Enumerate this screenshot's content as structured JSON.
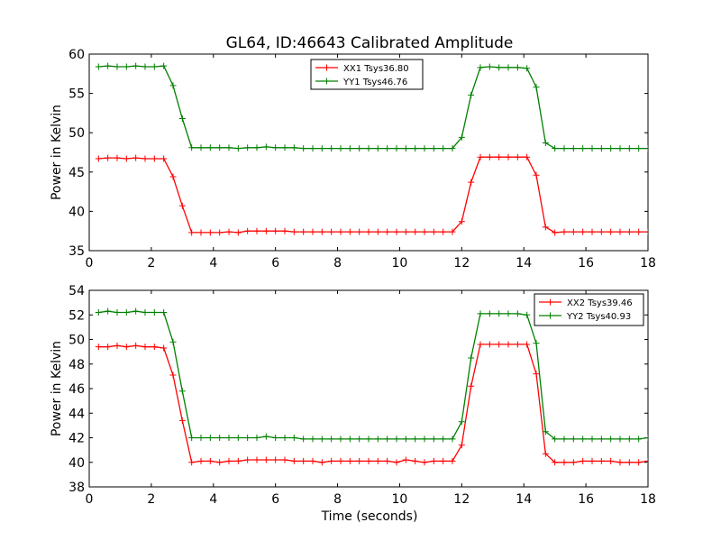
{
  "figure": {
    "title": "GL64, ID:46643 Calibrated Amplitude",
    "xlabel": "Time (seconds)"
  },
  "chart_data": [
    {
      "type": "line",
      "title": "GL64, ID:46643 Calibrated Amplitude",
      "xlabel": "",
      "ylabel": "Power in Kelvin",
      "xlim": [
        0,
        18
      ],
      "ylim": [
        35,
        60
      ],
      "xticks": [
        "0",
        "2",
        "4",
        "6",
        "8",
        "10",
        "12",
        "14",
        "16",
        "18"
      ],
      "yticks": [
        "35",
        "40",
        "45",
        "50",
        "55",
        "60"
      ],
      "grid": false,
      "legend_position": "top-center",
      "x": [
        0.3,
        0.6,
        0.9,
        1.2,
        1.5,
        1.8,
        2.1,
        2.4,
        2.7,
        3.0,
        3.3,
        3.6,
        3.9,
        4.2,
        4.5,
        4.8,
        5.1,
        5.4,
        5.7,
        6.0,
        6.3,
        6.6,
        6.9,
        7.2,
        7.5,
        7.8,
        8.1,
        8.4,
        8.7,
        9.0,
        9.3,
        9.6,
        9.9,
        10.2,
        10.5,
        10.8,
        11.1,
        11.4,
        11.7,
        12.0,
        12.3,
        12.6,
        12.9,
        13.2,
        13.5,
        13.8,
        14.1,
        14.4,
        14.7,
        15.0,
        15.3,
        15.6,
        15.9,
        16.2,
        16.5,
        16.8,
        17.1,
        17.4,
        17.7,
        18.0
      ],
      "series": [
        {
          "name": "XX1 Tsys36.80",
          "color": "#ff0000",
          "values": [
            46.7,
            46.8,
            46.8,
            46.7,
            46.8,
            46.7,
            46.7,
            46.7,
            44.4,
            40.7,
            37.3,
            37.3,
            37.3,
            37.3,
            37.4,
            37.3,
            37.5,
            37.5,
            37.5,
            37.5,
            37.5,
            37.4,
            37.4,
            37.4,
            37.4,
            37.4,
            37.4,
            37.4,
            37.4,
            37.4,
            37.4,
            37.4,
            37.4,
            37.4,
            37.4,
            37.4,
            37.4,
            37.4,
            37.4,
            38.7,
            43.7,
            46.9,
            46.9,
            46.9,
            46.9,
            46.9,
            46.9,
            44.6,
            38.0,
            37.3,
            37.4,
            37.4,
            37.4,
            37.4,
            37.4,
            37.4,
            37.4,
            37.4,
            37.4,
            37.4
          ]
        },
        {
          "name": "YY1 Tsys46.76",
          "color": "#008000",
          "values": [
            58.4,
            58.5,
            58.4,
            58.4,
            58.5,
            58.4,
            58.4,
            58.5,
            56.0,
            51.8,
            48.1,
            48.1,
            48.1,
            48.1,
            48.1,
            48.0,
            48.1,
            48.1,
            48.2,
            48.1,
            48.1,
            48.1,
            48.0,
            48.0,
            48.0,
            48.0,
            48.0,
            48.0,
            48.0,
            48.0,
            48.0,
            48.0,
            48.0,
            48.0,
            48.0,
            48.0,
            48.0,
            48.0,
            48.0,
            49.4,
            54.8,
            58.3,
            58.4,
            58.3,
            58.3,
            58.3,
            58.2,
            55.8,
            48.7,
            48.0,
            48.0,
            48.0,
            48.0,
            48.0,
            48.0,
            48.0,
            48.0,
            48.0,
            48.0,
            48.0
          ]
        }
      ]
    },
    {
      "type": "line",
      "title": "",
      "xlabel": "Time (seconds)",
      "ylabel": "Power in Kelvin",
      "xlim": [
        0,
        18
      ],
      "ylim": [
        38,
        54
      ],
      "xticks": [
        "0",
        "2",
        "4",
        "6",
        "8",
        "10",
        "12",
        "14",
        "16",
        "18"
      ],
      "yticks": [
        "38",
        "40",
        "42",
        "44",
        "46",
        "48",
        "50",
        "52",
        "54"
      ],
      "grid": false,
      "legend_position": "top-right",
      "x": [
        0.3,
        0.6,
        0.9,
        1.2,
        1.5,
        1.8,
        2.1,
        2.4,
        2.7,
        3.0,
        3.3,
        3.6,
        3.9,
        4.2,
        4.5,
        4.8,
        5.1,
        5.4,
        5.7,
        6.0,
        6.3,
        6.6,
        6.9,
        7.2,
        7.5,
        7.8,
        8.1,
        8.4,
        8.7,
        9.0,
        9.3,
        9.6,
        9.9,
        10.2,
        10.5,
        10.8,
        11.1,
        11.4,
        11.7,
        12.0,
        12.3,
        12.6,
        12.9,
        13.2,
        13.5,
        13.8,
        14.1,
        14.4,
        14.7,
        15.0,
        15.3,
        15.6,
        15.9,
        16.2,
        16.5,
        16.8,
        17.1,
        17.4,
        17.7,
        18.0
      ],
      "series": [
        {
          "name": "XX2 Tsys39.46",
          "color": "#ff0000",
          "values": [
            49.4,
            49.4,
            49.5,
            49.4,
            49.5,
            49.4,
            49.4,
            49.3,
            47.1,
            43.4,
            40.0,
            40.1,
            40.1,
            40.0,
            40.1,
            40.1,
            40.2,
            40.2,
            40.2,
            40.2,
            40.2,
            40.1,
            40.1,
            40.1,
            40.0,
            40.1,
            40.1,
            40.1,
            40.1,
            40.1,
            40.1,
            40.1,
            40.0,
            40.2,
            40.1,
            40.0,
            40.1,
            40.1,
            40.1,
            41.4,
            46.2,
            49.6,
            49.6,
            49.6,
            49.6,
            49.6,
            49.6,
            47.2,
            40.7,
            40.0,
            40.0,
            40.0,
            40.1,
            40.1,
            40.1,
            40.1,
            40.0,
            40.0,
            40.0,
            40.1
          ]
        },
        {
          "name": "YY2 Tsys40.93",
          "color": "#008000",
          "values": [
            52.2,
            52.3,
            52.2,
            52.2,
            52.3,
            52.2,
            52.2,
            52.2,
            49.8,
            45.8,
            42.0,
            42.0,
            42.0,
            42.0,
            42.0,
            42.0,
            42.0,
            42.0,
            42.1,
            42.0,
            42.0,
            42.0,
            41.9,
            41.9,
            41.9,
            41.9,
            41.9,
            41.9,
            41.9,
            41.9,
            41.9,
            41.9,
            41.9,
            41.9,
            41.9,
            41.9,
            41.9,
            41.9,
            41.9,
            43.3,
            48.5,
            52.1,
            52.1,
            52.1,
            52.1,
            52.1,
            52.0,
            49.7,
            42.5,
            41.9,
            41.9,
            41.9,
            41.9,
            41.9,
            41.9,
            41.9,
            41.9,
            41.9,
            41.9,
            42.0
          ]
        }
      ]
    }
  ]
}
